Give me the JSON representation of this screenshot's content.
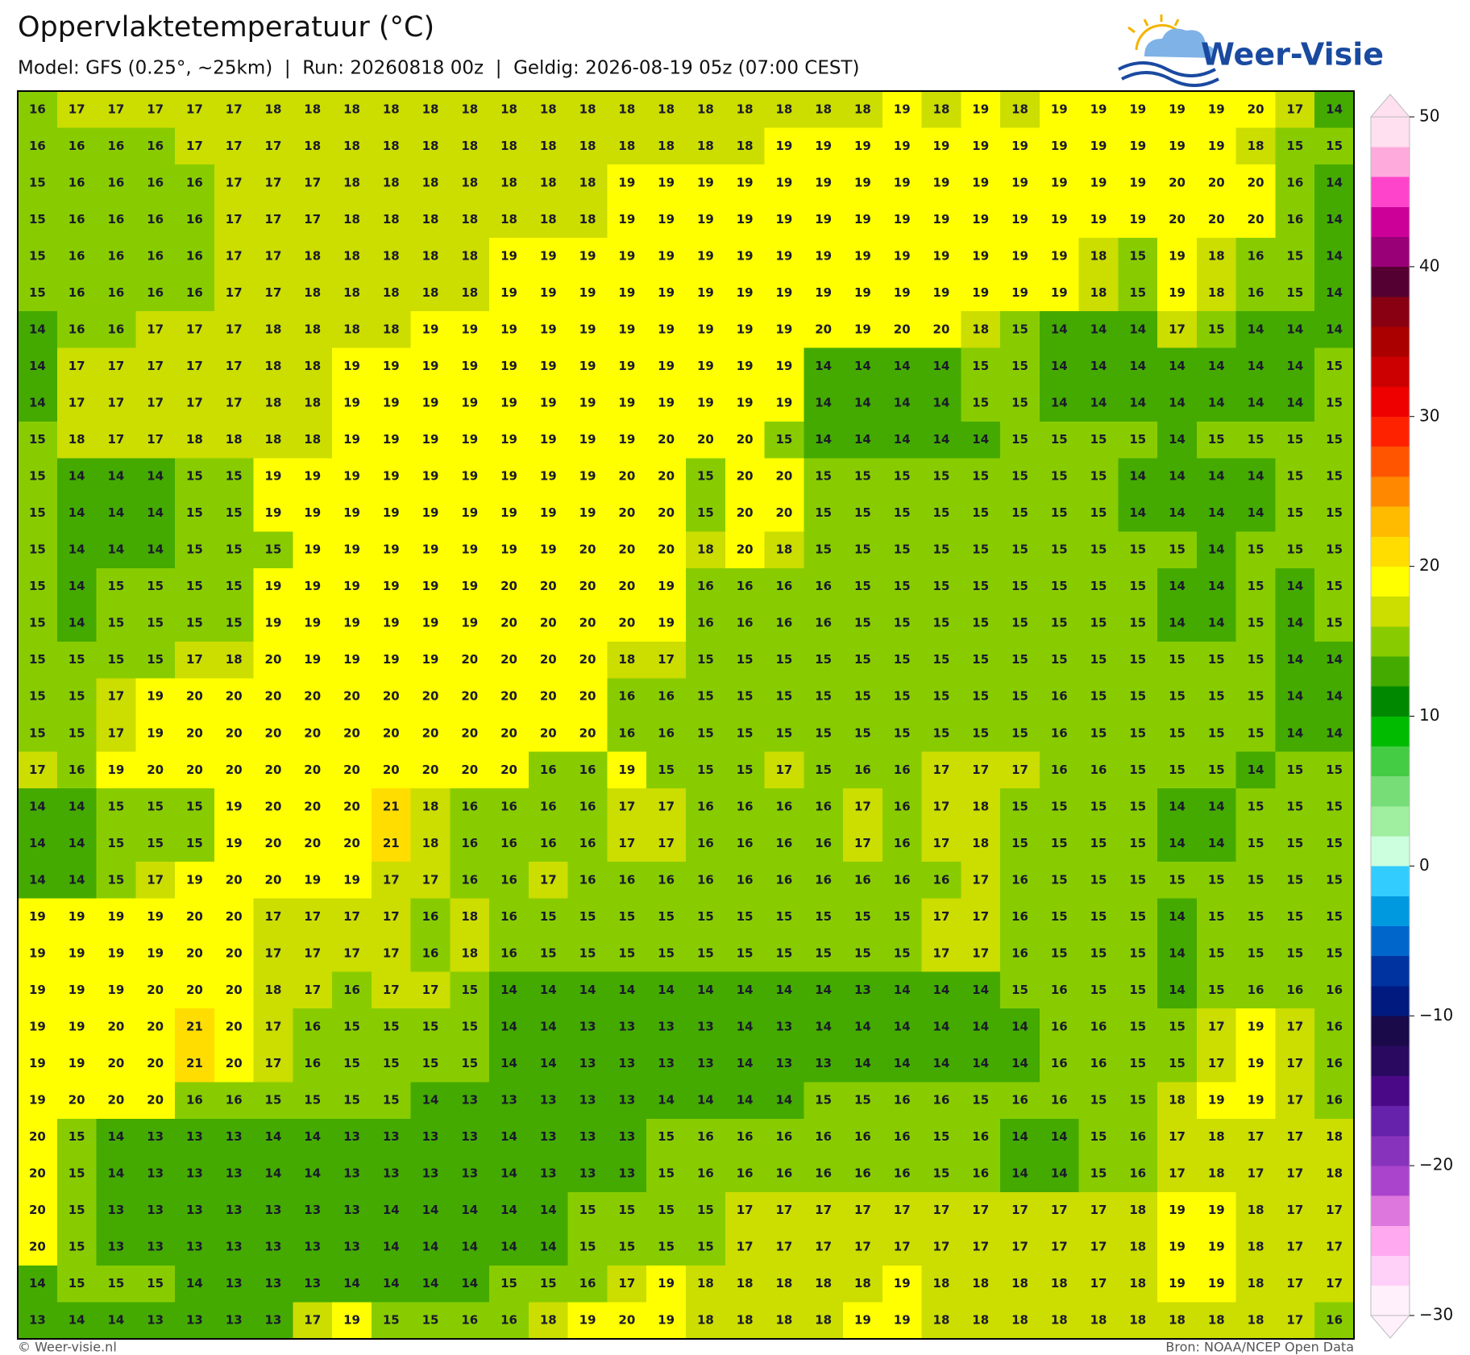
{
  "title": "Oppervlaktetemperatuur (°C)",
  "subtitle": "Model: GFS (0.25°, ~25km)  |  Run: 20260818 00z  |  Geldig: 2026-08-19 05z (07:00 CEST)",
  "logo": "Weer-Visie",
  "footer": {
    "left": "© Weer-visie.nl",
    "right": "Bron: NOAA/NCEP Open Data"
  },
  "chart_data": {
    "type": "heatmap",
    "values": [
      [
        16,
        17,
        17,
        17,
        17,
        17,
        18,
        18,
        18,
        18,
        18,
        18,
        18,
        18,
        18,
        18,
        18,
        18,
        18,
        18,
        18,
        18,
        19,
        18,
        19,
        18,
        19,
        19,
        19,
        19,
        19,
        20,
        17,
        14
      ],
      [
        16,
        16,
        16,
        16,
        17,
        17,
        17,
        18,
        18,
        18,
        18,
        18,
        18,
        18,
        18,
        18,
        18,
        18,
        18,
        19,
        19,
        19,
        19,
        19,
        19,
        19,
        19,
        19,
        19,
        19,
        19,
        18,
        15,
        15
      ],
      [
        15,
        16,
        16,
        16,
        16,
        17,
        17,
        17,
        18,
        18,
        18,
        18,
        18,
        18,
        18,
        19,
        19,
        19,
        19,
        19,
        19,
        19,
        19,
        19,
        19,
        19,
        19,
        19,
        19,
        20,
        20,
        20,
        16,
        14
      ],
      [
        15,
        16,
        16,
        16,
        16,
        17,
        17,
        17,
        18,
        18,
        18,
        18,
        18,
        18,
        18,
        19,
        19,
        19,
        19,
        19,
        19,
        19,
        19,
        19,
        19,
        19,
        19,
        19,
        19,
        20,
        20,
        20,
        16,
        14
      ],
      [
        15,
        16,
        16,
        16,
        16,
        17,
        17,
        18,
        18,
        18,
        18,
        18,
        19,
        19,
        19,
        19,
        19,
        19,
        19,
        19,
        19,
        19,
        19,
        19,
        19,
        19,
        19,
        18,
        15,
        19,
        18,
        16,
        15,
        14
      ],
      [
        15,
        16,
        16,
        16,
        16,
        17,
        17,
        18,
        18,
        18,
        18,
        18,
        19,
        19,
        19,
        19,
        19,
        19,
        19,
        19,
        19,
        19,
        19,
        19,
        19,
        19,
        19,
        18,
        15,
        19,
        18,
        16,
        15,
        14
      ],
      [
        14,
        16,
        16,
        17,
        17,
        17,
        18,
        18,
        18,
        18,
        19,
        19,
        19,
        19,
        19,
        19,
        19,
        19,
        19,
        19,
        20,
        19,
        20,
        20,
        18,
        15,
        14,
        14,
        14,
        17,
        15,
        14,
        14,
        14
      ],
      [
        14,
        17,
        17,
        17,
        17,
        17,
        18,
        18,
        19,
        19,
        19,
        19,
        19,
        19,
        19,
        19,
        19,
        19,
        19,
        19,
        14,
        14,
        14,
        14,
        15,
        15,
        14,
        14,
        14,
        14,
        14,
        14,
        14,
        15
      ],
      [
        14,
        17,
        17,
        17,
        17,
        17,
        18,
        18,
        19,
        19,
        19,
        19,
        19,
        19,
        19,
        19,
        19,
        19,
        19,
        19,
        14,
        14,
        14,
        14,
        15,
        15,
        14,
        14,
        14,
        14,
        14,
        14,
        14,
        15
      ],
      [
        15,
        18,
        17,
        17,
        18,
        18,
        18,
        18,
        19,
        19,
        19,
        19,
        19,
        19,
        19,
        19,
        20,
        20,
        20,
        15,
        14,
        14,
        14,
        14,
        14,
        15,
        15,
        15,
        15,
        14,
        15,
        15,
        15,
        15
      ],
      [
        15,
        14,
        14,
        14,
        15,
        15,
        19,
        19,
        19,
        19,
        19,
        19,
        19,
        19,
        19,
        20,
        20,
        15,
        20,
        20,
        15,
        15,
        15,
        15,
        15,
        15,
        15,
        15,
        14,
        14,
        14,
        14,
        15,
        15
      ],
      [
        15,
        14,
        14,
        14,
        15,
        15,
        19,
        19,
        19,
        19,
        19,
        19,
        19,
        19,
        19,
        20,
        20,
        15,
        20,
        20,
        15,
        15,
        15,
        15,
        15,
        15,
        15,
        15,
        14,
        14,
        14,
        14,
        15,
        15
      ],
      [
        15,
        14,
        14,
        14,
        15,
        15,
        15,
        19,
        19,
        19,
        19,
        19,
        19,
        19,
        20,
        20,
        20,
        18,
        20,
        18,
        15,
        15,
        15,
        15,
        15,
        15,
        15,
        15,
        15,
        15,
        14,
        15,
        15,
        15
      ],
      [
        15,
        14,
        15,
        15,
        15,
        15,
        19,
        19,
        19,
        19,
        19,
        19,
        20,
        20,
        20,
        20,
        19,
        16,
        16,
        16,
        16,
        15,
        15,
        15,
        15,
        15,
        15,
        15,
        15,
        14,
        14,
        15,
        14,
        15
      ],
      [
        15,
        14,
        15,
        15,
        15,
        15,
        19,
        19,
        19,
        19,
        19,
        19,
        20,
        20,
        20,
        20,
        19,
        16,
        16,
        16,
        16,
        15,
        15,
        15,
        15,
        15,
        15,
        15,
        15,
        14,
        14,
        15,
        14,
        15
      ],
      [
        15,
        15,
        15,
        15,
        17,
        18,
        20,
        19,
        19,
        19,
        19,
        20,
        20,
        20,
        20,
        18,
        17,
        15,
        15,
        15,
        15,
        15,
        15,
        15,
        15,
        15,
        15,
        15,
        15,
        15,
        15,
        15,
        14,
        14
      ],
      [
        15,
        15,
        17,
        19,
        20,
        20,
        20,
        20,
        20,
        20,
        20,
        20,
        20,
        20,
        20,
        16,
        16,
        15,
        15,
        15,
        15,
        15,
        15,
        15,
        15,
        15,
        16,
        15,
        15,
        15,
        15,
        15,
        14,
        14
      ],
      [
        15,
        15,
        17,
        19,
        20,
        20,
        20,
        20,
        20,
        20,
        20,
        20,
        20,
        20,
        20,
        16,
        16,
        15,
        15,
        15,
        15,
        15,
        15,
        15,
        15,
        15,
        16,
        15,
        15,
        15,
        15,
        15,
        14,
        14
      ],
      [
        17,
        16,
        19,
        20,
        20,
        20,
        20,
        20,
        20,
        20,
        20,
        20,
        20,
        16,
        16,
        19,
        15,
        15,
        15,
        17,
        15,
        16,
        16,
        17,
        17,
        17,
        16,
        16,
        15,
        15,
        15,
        14,
        15,
        15
      ],
      [
        14,
        14,
        15,
        15,
        15,
        19,
        20,
        20,
        20,
        21,
        18,
        16,
        16,
        16,
        16,
        17,
        17,
        16,
        16,
        16,
        16,
        17,
        16,
        17,
        18,
        15,
        15,
        15,
        15,
        14,
        14,
        15,
        15,
        15
      ],
      [
        14,
        14,
        15,
        15,
        15,
        19,
        20,
        20,
        20,
        21,
        18,
        16,
        16,
        16,
        16,
        17,
        17,
        16,
        16,
        16,
        16,
        17,
        16,
        17,
        18,
        15,
        15,
        15,
        15,
        14,
        14,
        15,
        15,
        15
      ],
      [
        14,
        14,
        15,
        17,
        19,
        20,
        20,
        19,
        19,
        17,
        17,
        16,
        16,
        17,
        16,
        16,
        16,
        16,
        16,
        16,
        16,
        16,
        16,
        16,
        17,
        16,
        15,
        15,
        15,
        15,
        15,
        15,
        15,
        15
      ],
      [
        19,
        19,
        19,
        19,
        20,
        20,
        17,
        17,
        17,
        17,
        16,
        18,
        16,
        15,
        15,
        15,
        15,
        15,
        15,
        15,
        15,
        15,
        15,
        17,
        17,
        16,
        15,
        15,
        15,
        14,
        15,
        15,
        15,
        15
      ],
      [
        19,
        19,
        19,
        19,
        20,
        20,
        17,
        17,
        17,
        17,
        16,
        18,
        16,
        15,
        15,
        15,
        15,
        15,
        15,
        15,
        15,
        15,
        15,
        17,
        17,
        16,
        15,
        15,
        15,
        14,
        15,
        15,
        15,
        15
      ],
      [
        19,
        19,
        19,
        20,
        20,
        20,
        18,
        17,
        16,
        17,
        17,
        15,
        14,
        14,
        14,
        14,
        14,
        14,
        14,
        14,
        14,
        13,
        14,
        14,
        14,
        15,
        16,
        15,
        15,
        14,
        15,
        16,
        16,
        16
      ],
      [
        19,
        19,
        20,
        20,
        21,
        20,
        17,
        16,
        15,
        15,
        15,
        15,
        14,
        14,
        13,
        13,
        13,
        13,
        14,
        13,
        14,
        14,
        14,
        14,
        14,
        14,
        16,
        16,
        15,
        15,
        17,
        19,
        17,
        16
      ],
      [
        19,
        19,
        20,
        20,
        21,
        20,
        17,
        16,
        15,
        15,
        15,
        15,
        14,
        14,
        13,
        13,
        13,
        13,
        14,
        13,
        13,
        14,
        14,
        14,
        14,
        14,
        16,
        16,
        15,
        15,
        17,
        19,
        17,
        16
      ],
      [
        19,
        20,
        20,
        20,
        16,
        16,
        15,
        15,
        15,
        15,
        14,
        13,
        13,
        13,
        13,
        13,
        14,
        14,
        14,
        14,
        15,
        15,
        16,
        16,
        15,
        16,
        16,
        15,
        15,
        18,
        19,
        19,
        17,
        16
      ],
      [
        20,
        15,
        14,
        13,
        13,
        13,
        14,
        14,
        13,
        13,
        13,
        13,
        14,
        13,
        13,
        13,
        15,
        16,
        16,
        16,
        16,
        16,
        16,
        15,
        16,
        14,
        14,
        15,
        16,
        17,
        18,
        17,
        17,
        18
      ],
      [
        20,
        15,
        14,
        13,
        13,
        13,
        14,
        14,
        13,
        13,
        13,
        13,
        14,
        13,
        13,
        13,
        15,
        16,
        16,
        16,
        16,
        16,
        16,
        15,
        16,
        14,
        14,
        15,
        16,
        17,
        18,
        17,
        17,
        18
      ],
      [
        20,
        15,
        13,
        13,
        13,
        13,
        13,
        13,
        13,
        14,
        14,
        14,
        14,
        14,
        15,
        15,
        15,
        15,
        17,
        17,
        17,
        17,
        17,
        17,
        17,
        17,
        17,
        17,
        18,
        19,
        19,
        18,
        17,
        17
      ],
      [
        20,
        15,
        13,
        13,
        13,
        13,
        13,
        13,
        13,
        14,
        14,
        14,
        14,
        14,
        15,
        15,
        15,
        15,
        17,
        17,
        17,
        17,
        17,
        17,
        17,
        17,
        17,
        17,
        18,
        19,
        19,
        18,
        17,
        17
      ],
      [
        14,
        15,
        15,
        15,
        14,
        13,
        13,
        13,
        14,
        14,
        14,
        14,
        15,
        15,
        16,
        17,
        19,
        18,
        18,
        18,
        18,
        18,
        19,
        18,
        18,
        18,
        18,
        17,
        18,
        19,
        19,
        18,
        17,
        17
      ],
      [
        13,
        14,
        14,
        13,
        13,
        13,
        13,
        17,
        19,
        15,
        15,
        16,
        16,
        18,
        19,
        20,
        19,
        18,
        18,
        18,
        18,
        19,
        19,
        18,
        18,
        18,
        18,
        18,
        18,
        18,
        18,
        18,
        17,
        16
      ]
    ],
    "colorbar": {
      "clim": [
        -30,
        50
      ],
      "ticks": [
        50,
        40,
        30,
        20,
        10,
        0,
        {
          "value": -10,
          "label": "−10"
        },
        {
          "value": -20,
          "label": "−20"
        },
        {
          "value": -30,
          "label": "−30"
        }
      ],
      "colors": [
        "#fff0fc",
        "#ffd0f8",
        "#ffaaf0",
        "#dd77dd",
        "#aa44cc",
        "#8833bb",
        "#6622aa",
        "#4a0a88",
        "#2a0a60",
        "#1a0a4a",
        "#001a80",
        "#0033a0",
        "#0066cc",
        "#0099e0",
        "#33ccff",
        "#ccffdd",
        "#a0eea0",
        "#77dd77",
        "#44cc44",
        "#00bb00",
        "#008800",
        "#44aa00",
        "#88cc00",
        "#ccdd00",
        "#ffff00",
        "#ffdd00",
        "#ffbb00",
        "#ff8800",
        "#ff5500",
        "#ff2200",
        "#ee0000",
        "#cc0000",
        "#aa0000",
        "#880011",
        "#550033",
        "#990077",
        "#cc0099",
        "#ff44cc",
        "#ffaadd",
        "#ffe0f0"
      ]
    }
  }
}
